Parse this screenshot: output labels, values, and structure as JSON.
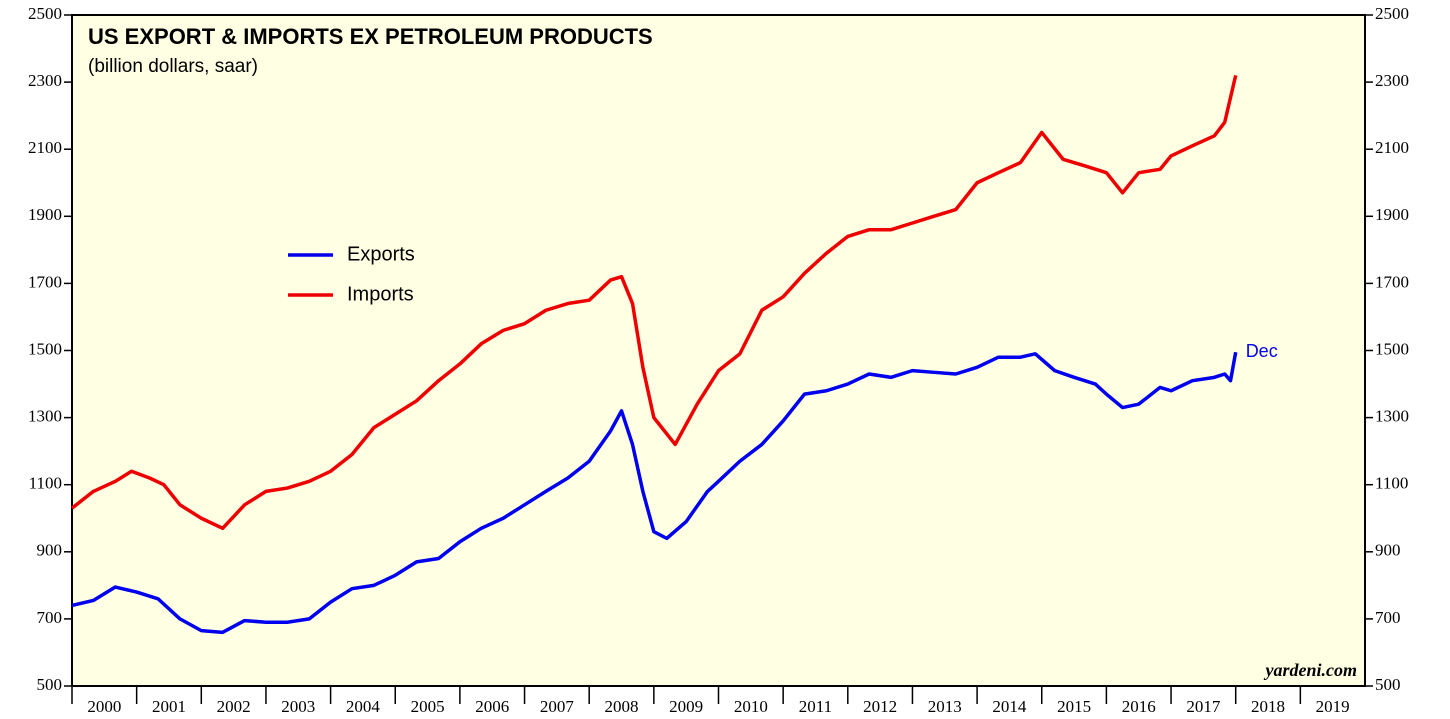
{
  "chart_data": {
    "type": "line",
    "title": "US EXPORT & IMPORTS EX PETROLEUM PRODUCTS",
    "subtitle": "(billion dollars, saar)",
    "source": "yardeni.com",
    "annotation": "Dec",
    "xlim": [
      2000,
      2020
    ],
    "xticks": [
      2000,
      2001,
      2002,
      2003,
      2004,
      2005,
      2006,
      2007,
      2008,
      2009,
      2010,
      2011,
      2012,
      2013,
      2014,
      2015,
      2016,
      2017,
      2018,
      2019
    ],
    "ylim": [
      500,
      2500
    ],
    "yticks": [
      500,
      700,
      900,
      1100,
      1300,
      1500,
      1700,
      1900,
      2100,
      2300,
      2500
    ],
    "series": [
      {
        "name": "Exports",
        "color": "#0000ee",
        "x": [
          2000.0,
          2000.33,
          2000.67,
          2001.0,
          2001.33,
          2001.67,
          2002.0,
          2002.33,
          2002.67,
          2003.0,
          2003.33,
          2003.67,
          2004.0,
          2004.33,
          2004.67,
          2005.0,
          2005.33,
          2005.67,
          2006.0,
          2006.33,
          2006.67,
          2007.0,
          2007.33,
          2007.67,
          2008.0,
          2008.33,
          2008.5,
          2008.67,
          2008.83,
          2009.0,
          2009.2,
          2009.5,
          2009.83,
          2010.0,
          2010.33,
          2010.67,
          2011.0,
          2011.33,
          2011.67,
          2012.0,
          2012.33,
          2012.67,
          2013.0,
          2013.33,
          2013.67,
          2014.0,
          2014.33,
          2014.67,
          2014.9,
          2015.2,
          2015.5,
          2015.83,
          2016.0,
          2016.25,
          2016.5,
          2016.83,
          2017.0,
          2017.33,
          2017.67,
          2017.83,
          2017.92,
          2018.0
        ],
        "values": [
          740,
          755,
          795,
          780,
          760,
          700,
          665,
          660,
          695,
          690,
          690,
          700,
          750,
          790,
          800,
          830,
          870,
          880,
          930,
          970,
          1000,
          1040,
          1080,
          1120,
          1170,
          1260,
          1320,
          1220,
          1080,
          960,
          940,
          990,
          1080,
          1110,
          1170,
          1220,
          1290,
          1370,
          1380,
          1400,
          1430,
          1420,
          1440,
          1435,
          1430,
          1450,
          1480,
          1480,
          1490,
          1440,
          1420,
          1400,
          1370,
          1330,
          1340,
          1390,
          1380,
          1410,
          1420,
          1430,
          1410,
          1495
        ]
      },
      {
        "name": "Imports",
        "color": "#ee0000",
        "x": [
          2000.0,
          2000.33,
          2000.67,
          2000.92,
          2001.2,
          2001.42,
          2001.67,
          2002.0,
          2002.33,
          2002.67,
          2003.0,
          2003.33,
          2003.67,
          2004.0,
          2004.33,
          2004.67,
          2005.0,
          2005.33,
          2005.67,
          2006.0,
          2006.33,
          2006.67,
          2007.0,
          2007.33,
          2007.67,
          2008.0,
          2008.33,
          2008.5,
          2008.67,
          2008.83,
          2009.0,
          2009.33,
          2009.67,
          2010.0,
          2010.33,
          2010.67,
          2011.0,
          2011.33,
          2011.67,
          2012.0,
          2012.33,
          2012.67,
          2013.0,
          2013.33,
          2013.67,
          2014.0,
          2014.33,
          2014.67,
          2015.0,
          2015.33,
          2015.67,
          2016.0,
          2016.25,
          2016.5,
          2016.83,
          2017.0,
          2017.33,
          2017.67,
          2017.83,
          2018.0
        ],
        "values": [
          1030,
          1080,
          1110,
          1140,
          1120,
          1100,
          1040,
          1000,
          970,
          1040,
          1080,
          1090,
          1110,
          1140,
          1190,
          1270,
          1310,
          1350,
          1410,
          1460,
          1520,
          1560,
          1580,
          1620,
          1640,
          1650,
          1710,
          1720,
          1640,
          1450,
          1300,
          1220,
          1340,
          1440,
          1490,
          1620,
          1660,
          1730,
          1790,
          1840,
          1860,
          1860,
          1880,
          1900,
          1920,
          2000,
          2030,
          2060,
          2150,
          2070,
          2050,
          2030,
          1970,
          2030,
          2040,
          2080,
          2110,
          2140,
          2180,
          2320
        ]
      }
    ]
  }
}
